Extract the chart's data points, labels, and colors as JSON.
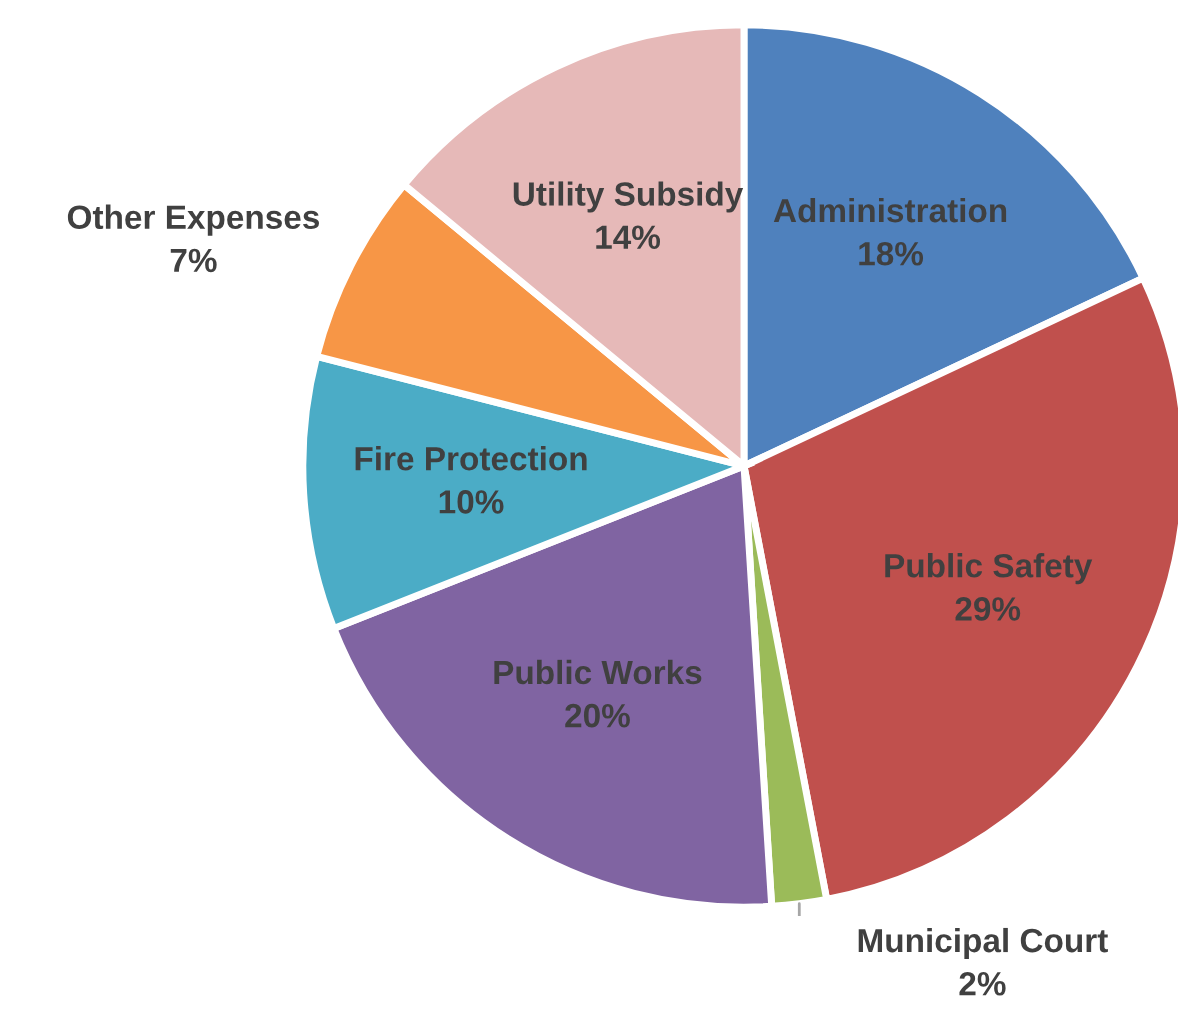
{
  "chart_data": {
    "type": "pie",
    "categories": [
      "Administration",
      "Public Safety",
      "Municipal Court",
      "Public Works",
      "Fire Protection",
      "Other Expenses",
      "Utility Subsidy"
    ],
    "values": [
      18,
      29,
      2,
      20,
      10,
      7,
      14
    ],
    "value_labels": [
      "18%",
      "29%",
      "2%",
      "20%",
      "10%",
      "7%",
      "14%"
    ],
    "colors": [
      "#4f81bd",
      "#c0504d",
      "#9bbb59",
      "#8064a2",
      "#4bacc6",
      "#f79646",
      "#e6b9b8"
    ]
  }
}
